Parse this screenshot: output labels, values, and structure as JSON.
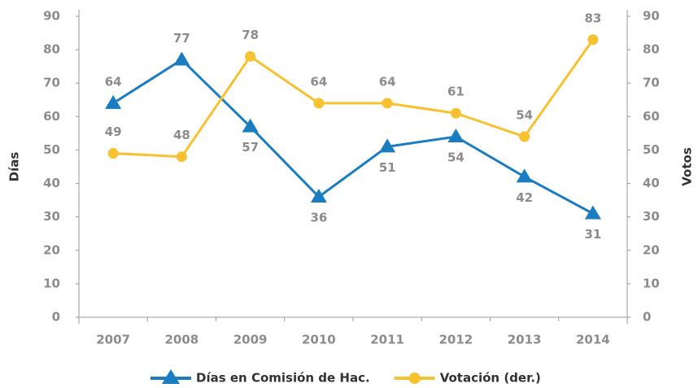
{
  "chart_data": {
    "type": "line",
    "categories": [
      "2007",
      "2008",
      "2009",
      "2010",
      "2011",
      "2012",
      "2013",
      "2014"
    ],
    "series": [
      {
        "name": "Días en Comisión de Hac.",
        "color": "#1a7cc1",
        "marker": "triangle",
        "values": [
          64,
          77,
          57,
          36,
          51,
          54,
          42,
          31
        ]
      },
      {
        "name": "Votación (der.)",
        "color": "#f8c12f",
        "marker": "circle",
        "axis": "y2",
        "values": [
          49,
          48,
          78,
          64,
          64,
          61,
          54,
          83
        ]
      }
    ],
    "ylabel": "Días",
    "y2label": "Votos",
    "ylim": [
      0,
      90
    ],
    "yticks": [
      0,
      10,
      20,
      30,
      40,
      50,
      60,
      70,
      80,
      90
    ],
    "y2lim": [
      0,
      90
    ],
    "y2ticks": [
      0,
      10,
      20,
      30,
      40,
      50,
      60,
      70,
      80,
      90
    ],
    "legend": "bottom"
  }
}
